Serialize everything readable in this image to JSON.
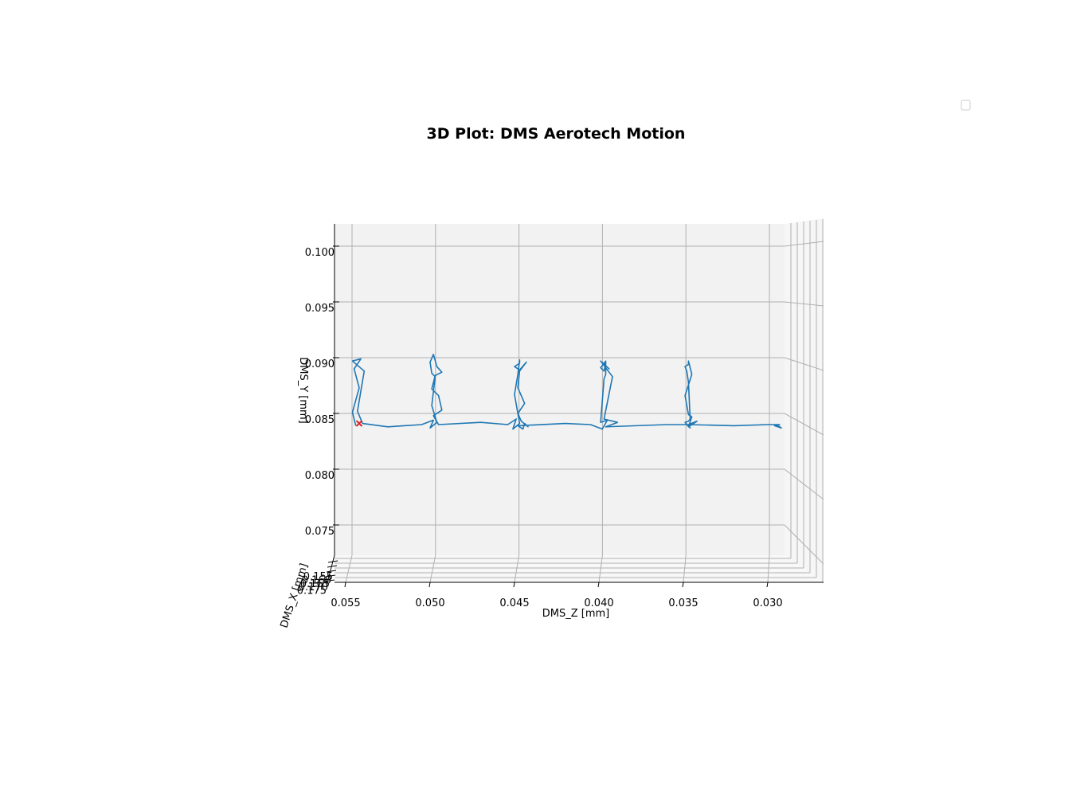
{
  "chart_data": {
    "type": "line",
    "title": "3D Plot: DMS Aerotech Motion",
    "xlabel": "DMS_X [mm]",
    "ylabel": "DMS_Y [mm]",
    "zlabel": "DMS_Z [mm]",
    "view": "projected 3D, Z axis horizontal (decreasing left to right), Y axis vertical",
    "z_ticks": [
      "0.055",
      "0.050",
      "0.045",
      "0.040",
      "0.035",
      "0.030"
    ],
    "y_ticks": [
      "0.100",
      "0.095",
      "0.090",
      "0.085",
      "0.080",
      "0.075"
    ],
    "x_ticks": [
      "0.155",
      "0.160",
      "0.165",
      "0.170",
      "0.175"
    ],
    "zlim": [
      0.0576,
      0.0273
    ],
    "ylim": [
      0.0722,
      0.102
    ],
    "grid": true,
    "legend": {
      "position": "top-right",
      "entries": []
    },
    "colors": {
      "trajectory": "#1f77b4",
      "start_marker": "#d62728",
      "pane": "#f2f2f2",
      "grid": "#b0b0b0"
    },
    "series": [
      {
        "z": [
          0.0544,
          0.0546,
          0.0542,
          0.0545,
          0.0541,
          0.0546,
          0.0539,
          0.0543,
          0.054,
          0.0525,
          0.0505,
          0.0498,
          0.05,
          0.0496,
          0.0499,
          0.0497,
          0.0499,
          0.05,
          0.0498,
          0.0496,
          0.0493,
          0.0497,
          0.0499,
          0.0495,
          0.0493,
          0.0498,
          0.0495,
          0.047,
          0.0454,
          0.0449,
          0.0451,
          0.0447,
          0.045,
          0.0448,
          0.0447,
          0.0447,
          0.045,
          0.0447,
          0.0443,
          0.0447,
          0.0448,
          0.0444,
          0.0448,
          0.0446,
          0.0442,
          0.0444,
          0.0445,
          0.0448,
          0.042,
          0.0405,
          0.0398,
          0.0395,
          0.0399,
          0.0397,
          0.0396,
          0.0396,
          0.0399,
          0.0397,
          0.0396,
          0.0397,
          0.0394,
          0.0399,
          0.0392,
          0.0395,
          0.0397,
          0.0389,
          0.0396,
          0.036,
          0.035,
          0.0348,
          0.0346,
          0.0349,
          0.0347,
          0.0346,
          0.0347,
          0.0348,
          0.0349,
          0.0347,
          0.0347,
          0.0345,
          0.0349,
          0.0347,
          0.0345,
          0.0347,
          0.0342,
          0.0347,
          0.032,
          0.03,
          0.0293,
          0.0296,
          0.0292,
          0.0295,
          0.0293,
          0.0296,
          0.0293
        ],
        "y": [
          0.0844,
          0.0856,
          0.0878,
          0.0895,
          0.0904,
          0.0902,
          0.0893,
          0.0857,
          0.0846,
          0.0843,
          0.0845,
          0.0849,
          0.0842,
          0.0847,
          0.0862,
          0.0888,
          0.0891,
          0.0901,
          0.0908,
          0.0897,
          0.0892,
          0.0889,
          0.0877,
          0.0871,
          0.0858,
          0.0853,
          0.0845,
          0.0847,
          0.0845,
          0.085,
          0.0841,
          0.0846,
          0.0872,
          0.089,
          0.0903,
          0.09,
          0.0897,
          0.0894,
          0.0901,
          0.0893,
          0.0878,
          0.0864,
          0.0855,
          0.0848,
          0.0843,
          0.0846,
          0.0841,
          0.0844,
          0.0846,
          0.0845,
          0.0841,
          0.0849,
          0.0847,
          0.0886,
          0.089,
          0.0902,
          0.0896,
          0.0893,
          0.09,
          0.0899,
          0.0895,
          0.0902,
          0.0888,
          0.0865,
          0.085,
          0.0847,
          0.0843,
          0.0845,
          0.0845,
          0.0845,
          0.0842,
          0.0847,
          0.0848,
          0.085,
          0.0883,
          0.0893,
          0.0897,
          0.0899,
          0.0902,
          0.089,
          0.0871,
          0.0854,
          0.0852,
          0.0843,
          0.0848,
          0.0845,
          0.0844,
          0.0845,
          0.0845,
          0.0844,
          0.0842,
          0.0845,
          0.0845,
          0.0845,
          0.0843
        ],
        "start_marker": {
          "z": 0.0542,
          "y": 0.0846
        }
      }
    ]
  }
}
